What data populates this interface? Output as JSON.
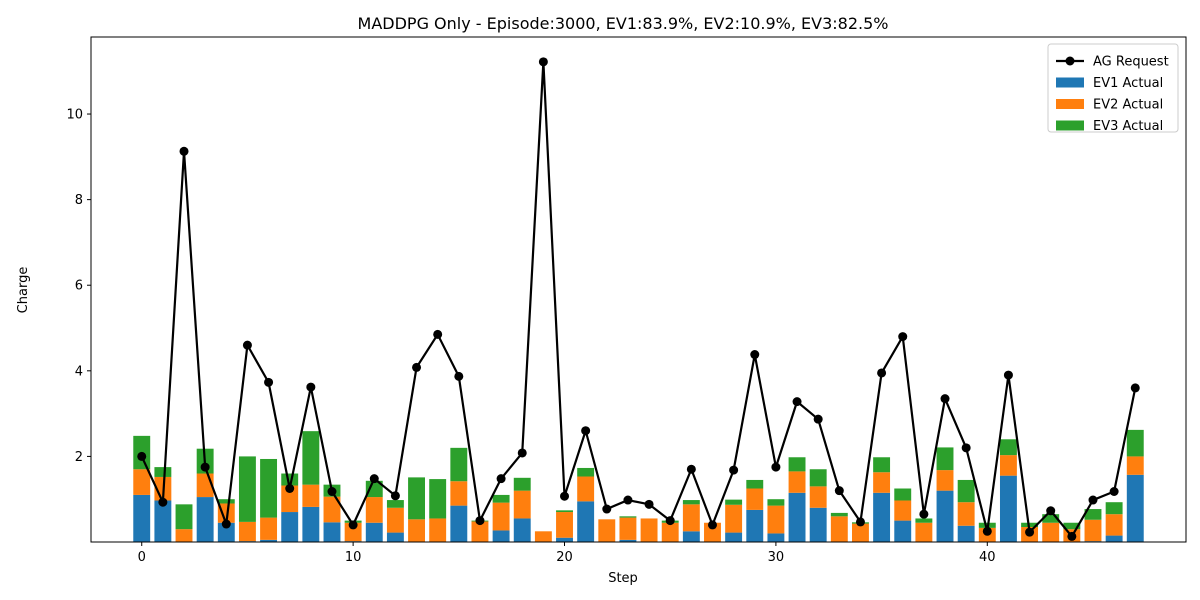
{
  "chart_data": {
    "type": "bar",
    "title": "MADDPG Only - Episode:3000, EV1:83.9%, EV2:10.9%, EV3:82.5%",
    "xlabel": "Step",
    "ylabel": "Charge",
    "xlim": [
      -2.4,
      49.4
    ],
    "ylim": [
      0,
      11.8
    ],
    "xticks": [
      0,
      10,
      20,
      30,
      40
    ],
    "yticks": [
      2,
      4,
      6,
      8,
      10
    ],
    "grid": false,
    "legend_position": "top-right",
    "stacked": true,
    "x": [
      0,
      1,
      2,
      3,
      4,
      5,
      6,
      7,
      8,
      9,
      10,
      11,
      12,
      13,
      14,
      15,
      16,
      17,
      18,
      19,
      20,
      21,
      22,
      23,
      24,
      25,
      26,
      27,
      28,
      29,
      30,
      31,
      32,
      33,
      34,
      35,
      36,
      37,
      38,
      39,
      40,
      41,
      42,
      43,
      44,
      45,
      46,
      47
    ],
    "series": [
      {
        "name": "EV1 Actual",
        "color": "#1f77b4",
        "values": [
          1.1,
          0.97,
          0.0,
          1.05,
          0.45,
          0.02,
          0.05,
          0.7,
          0.82,
          0.46,
          0.02,
          0.45,
          0.22,
          0.0,
          0.0,
          0.85,
          0.0,
          0.27,
          0.55,
          0.0,
          0.1,
          0.95,
          0.0,
          0.05,
          0.0,
          0.0,
          0.25,
          0.0,
          0.22,
          0.75,
          0.2,
          1.15,
          0.8,
          0.0,
          0.0,
          1.15,
          0.5,
          0.0,
          1.2,
          0.38,
          0.0,
          1.55,
          0.0,
          0.0,
          0.0,
          0.02,
          0.15,
          1.57
        ]
      },
      {
        "name": "EV2 Actual",
        "color": "#ff7f0e",
        "values": [
          0.6,
          0.55,
          0.3,
          0.55,
          0.45,
          0.45,
          0.52,
          0.62,
          0.52,
          0.6,
          0.43,
          0.6,
          0.58,
          0.53,
          0.55,
          0.57,
          0.48,
          0.65,
          0.65,
          0.25,
          0.6,
          0.58,
          0.53,
          0.52,
          0.55,
          0.45,
          0.63,
          0.45,
          0.65,
          0.5,
          0.65,
          0.5,
          0.5,
          0.6,
          0.43,
          0.48,
          0.47,
          0.45,
          0.48,
          0.55,
          0.33,
          0.48,
          0.35,
          0.45,
          0.3,
          0.5,
          0.5,
          0.43
        ]
      },
      {
        "name": "EV3 Actual",
        "color": "#2ca02c",
        "values": [
          0.78,
          0.23,
          0.58,
          0.58,
          0.1,
          1.53,
          1.37,
          0.28,
          1.25,
          0.28,
          0.05,
          0.38,
          0.18,
          0.98,
          0.92,
          0.78,
          0.02,
          0.18,
          0.3,
          0.0,
          0.04,
          0.2,
          0.0,
          0.03,
          0.0,
          0.05,
          0.1,
          0.0,
          0.12,
          0.2,
          0.15,
          0.33,
          0.4,
          0.08,
          0.03,
          0.35,
          0.28,
          0.1,
          0.53,
          0.52,
          0.12,
          0.37,
          0.1,
          0.2,
          0.15,
          0.25,
          0.28,
          0.62
        ]
      }
    ],
    "line": {
      "name": "AG Request",
      "color": "#000000",
      "values": [
        2.0,
        0.93,
        9.13,
        1.75,
        0.42,
        4.6,
        3.73,
        1.25,
        3.62,
        1.18,
        0.4,
        1.48,
        1.08,
        4.08,
        4.85,
        3.87,
        0.5,
        1.48,
        2.08,
        11.22,
        1.07,
        2.6,
        0.77,
        0.98,
        0.88,
        0.5,
        1.7,
        0.4,
        1.68,
        4.38,
        1.75,
        3.28,
        2.87,
        1.2,
        0.47,
        3.95,
        4.8,
        0.65,
        3.35,
        2.2,
        0.25,
        3.9,
        0.23,
        0.73,
        0.13,
        0.98,
        1.18,
        3.6
      ]
    }
  }
}
